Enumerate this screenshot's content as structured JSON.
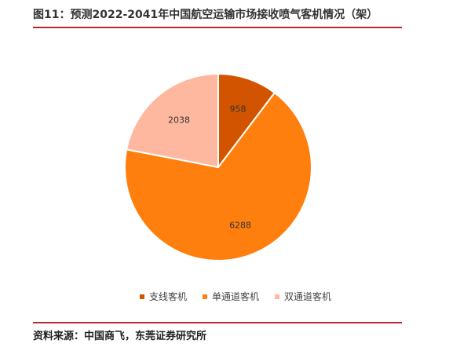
{
  "header": {
    "title": "图11：预测2022-2041年中国航空运输市场接收喷气客机情况（架）"
  },
  "footer": {
    "source": "资料来源：中国商飞，东莞证券研究所"
  },
  "chart_data": {
    "type": "pie",
    "title": "",
    "categories": [
      "支线客机",
      "单通道客机",
      "双通道客机"
    ],
    "values": [
      958,
      6288,
      2038
    ],
    "colors": [
      "#d35400",
      "#ff7f0e",
      "#ffb8a0"
    ],
    "start_angle": "12 o'clock, clockwise",
    "data_labels": true,
    "legend": "bottom"
  }
}
